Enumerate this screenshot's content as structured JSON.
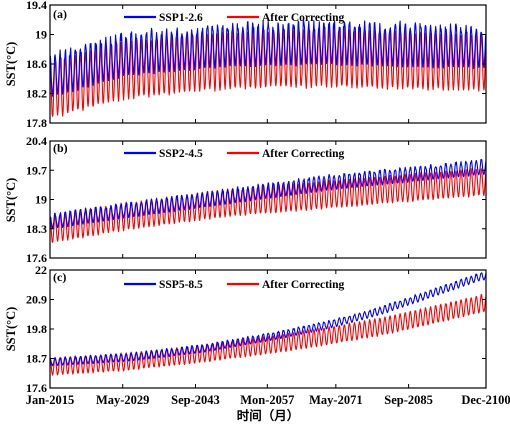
{
  "chart_data": [
    {
      "type": "line",
      "panel_label": "(a)",
      "ylabel": "SST(°C)",
      "ylim": [
        17.8,
        19.4
      ],
      "yticks": [
        17.8,
        18.2,
        18.6,
        19,
        19.4
      ],
      "ytick_labels": [
        "17.8",
        "18.2",
        "18.6",
        "19",
        "19.4"
      ],
      "legend_position": "top-center",
      "series": [
        {
          "name": "SSP1-2.6",
          "color": "#0000ff",
          "trend": {
            "x": [
              2015,
              2030,
              2050,
              2070,
              2100
            ],
            "mean": [
              18.4,
              18.7,
              18.82,
              18.85,
              18.8
            ]
          },
          "amplitude": 0.26
        },
        {
          "name": "After Correcting",
          "color": "#ff0000",
          "trend": {
            "x": [
              2015,
              2030,
              2050,
              2070,
              2100
            ],
            "mean": [
              18.25,
              18.52,
              18.65,
              18.68,
              18.62
            ]
          },
          "amplitude": 0.38
        }
      ]
    },
    {
      "type": "line",
      "panel_label": "(b)",
      "ylabel": "SST(°C)",
      "ylim": [
        17.6,
        20.4
      ],
      "yticks": [
        17.6,
        18.3,
        19,
        19.7,
        20.4
      ],
      "ytick_labels": [
        "17.6",
        "18.3",
        "19",
        "19.7",
        "20.4"
      ],
      "legend_position": "top-center",
      "series": [
        {
          "name": "SSP2-4.5",
          "color": "#0000ff",
          "trend": {
            "x": [
              2015,
              2030,
              2050,
              2070,
              2100
            ],
            "mean": [
              18.45,
              18.72,
              19.05,
              19.38,
              19.75
            ]
          },
          "amplitude": 0.16
        },
        {
          "name": "After Correcting",
          "color": "#ff0000",
          "trend": {
            "x": [
              2015,
              2030,
              2050,
              2070,
              2100
            ],
            "mean": [
              18.28,
              18.6,
              18.92,
              19.12,
              19.42
            ]
          },
          "amplitude": 0.32
        }
      ]
    },
    {
      "type": "line",
      "panel_label": "(c)",
      "ylabel": "SST(°C)",
      "xlabel": "时间（月）",
      "ylim": [
        17.6,
        22
      ],
      "yticks": [
        17.6,
        18.7,
        19.8,
        20.9,
        22
      ],
      "ytick_labels": [
        "17.6",
        "18.7",
        "19.8",
        "20.9",
        "22"
      ],
      "xticks": [
        2015.0,
        2029.33,
        2043.67,
        2057.83,
        2071.33,
        2085.67,
        2100.92
      ],
      "xtick_labels": [
        "Jan-2015",
        "May-2029",
        "Sep-2043",
        "Mon-2057",
        "May-2071",
        "Sep-2085",
        "Dec-2100"
      ],
      "xlim": [
        2015.0,
        2100.92
      ],
      "legend_position": "top-center",
      "series": [
        {
          "name": "SSP5-8.5",
          "color": "#0000ff",
          "trend": {
            "x": [
              2015,
              2030,
              2045,
              2060,
              2070,
              2080,
              2090,
              2100
            ],
            "mean": [
              18.55,
              18.72,
              19.05,
              19.55,
              19.95,
              20.45,
              21.1,
              21.75
            ]
          },
          "amplitude": 0.13
        },
        {
          "name": "After Correcting",
          "color": "#ff0000",
          "trend": {
            "x": [
              2015,
              2030,
              2045,
              2060,
              2070,
              2080,
              2090,
              2100
            ],
            "mean": [
              18.4,
              18.58,
              18.88,
              19.25,
              19.55,
              19.88,
              20.3,
              20.75
            ]
          },
          "amplitude": 0.32
        }
      ]
    }
  ]
}
